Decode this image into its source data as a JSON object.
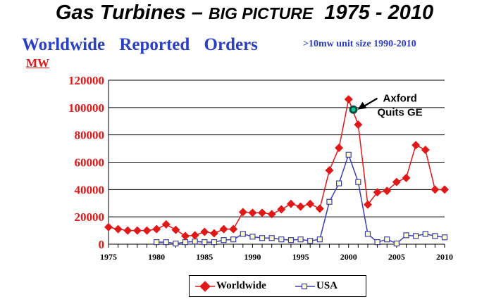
{
  "header": {
    "title_part1": "Gas Turbines",
    "title_dash": " – ",
    "title_part2": "BIG PICTURE",
    "title_years": "  1975 - 2010",
    "subtitle": "Worldwide Reported Orders",
    "note": ">10mw  unit size 1990-2010"
  },
  "colors": {
    "worldwide": "#e01818",
    "usa": "#3b3fb0",
    "title_blue": "#2b3fc2"
  },
  "chart_data": {
    "type": "line",
    "ylabel": "MW",
    "ylim": [
      0,
      120000
    ],
    "yticks": [
      "120000",
      "100000",
      "80000",
      "60000",
      "40000",
      "20000",
      "0"
    ],
    "xlim": [
      1975,
      2010
    ],
    "xticks": [
      "1975",
      "1980",
      "1985",
      "1990",
      "1995",
      "2000",
      "2005",
      "2010"
    ],
    "grid": "horizontal",
    "legend_position": "bottom",
    "series": [
      {
        "name": "Worldwide",
        "marker": "diamond-filled",
        "x": [
          1975,
          1976,
          1977,
          1978,
          1979,
          1980,
          1981,
          1982,
          1983,
          1984,
          1985,
          1986,
          1987,
          1988,
          1989,
          1990,
          1991,
          1992,
          1993,
          1994,
          1995,
          1996,
          1997,
          1998,
          1999,
          2000,
          2001,
          2002,
          2003,
          2004,
          2005,
          2006,
          2007,
          2008,
          2009,
          2010
        ],
        "values": [
          12500,
          11000,
          10000,
          10000,
          10000,
          11000,
          14500,
          10500,
          6000,
          6500,
          9000,
          8000,
          11000,
          11000,
          23500,
          23000,
          23000,
          22000,
          25500,
          29500,
          27500,
          29500,
          26000,
          54000,
          70500,
          106000,
          87500,
          29000,
          38000,
          39000,
          45500,
          48500,
          72500,
          69000,
          40000,
          40000
        ]
      },
      {
        "name": "USA",
        "marker": "square-open",
        "x": [
          1980,
          1981,
          1982,
          1983,
          1984,
          1985,
          1986,
          1987,
          1988,
          1989,
          1990,
          1991,
          1992,
          1993,
          1994,
          1995,
          1996,
          1997,
          1998,
          1999,
          2000,
          2001,
          2002,
          2003,
          2004,
          2005,
          2006,
          2007,
          2008,
          2009,
          2010
        ],
        "values": [
          1500,
          1500,
          500,
          1500,
          2000,
          1500,
          1500,
          3000,
          3500,
          7500,
          5500,
          4500,
          4500,
          3500,
          3000,
          3500,
          2500,
          3500,
          31000,
          44500,
          65500,
          45500,
          7500,
          1500,
          3500,
          500,
          6500,
          6000,
          7500,
          6000,
          5000
        ]
      }
    ],
    "annotation": {
      "text_line1": "Axford",
      "text_line2": "Quits GE",
      "x": 2000.5,
      "y": 98500
    }
  }
}
